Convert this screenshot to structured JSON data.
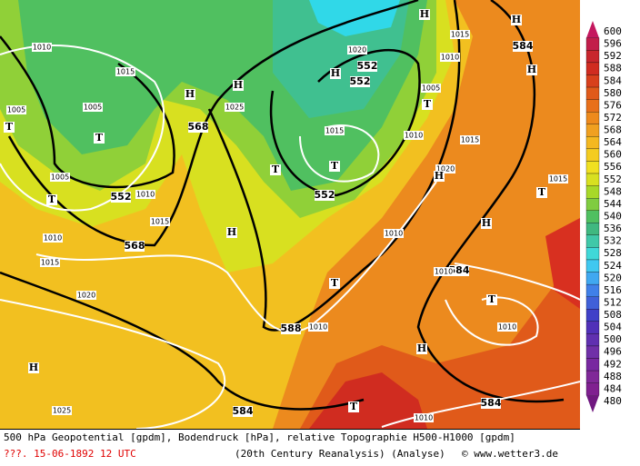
{
  "map": {
    "geopotential_labels": [
      552,
      552,
      568,
      552,
      552,
      568,
      588,
      584,
      584,
      584,
      584
    ],
    "isobar_labels": [
      1010,
      1015,
      1005,
      1005,
      1025,
      1020,
      1015,
      1010,
      1005,
      1015,
      1010,
      1015,
      1020,
      1005,
      1010,
      1015,
      1010,
      1015,
      1020,
      1010,
      1010,
      1015,
      1010,
      1010,
      1025,
      1010
    ],
    "pressure_centers": [
      "T",
      "T",
      "T",
      "H",
      "H",
      "H",
      "H",
      "H",
      "H",
      "T",
      "T",
      "T",
      "H",
      "H",
      "T",
      "H",
      "T",
      "T",
      "H",
      "H",
      "T"
    ],
    "colorbar": {
      "ticks": [
        600,
        596,
        592,
        588,
        584,
        580,
        576,
        572,
        568,
        564,
        560,
        556,
        552,
        548,
        544,
        540,
        536,
        532,
        528,
        524,
        520,
        516,
        512,
        508,
        504,
        500,
        496,
        492,
        488,
        484,
        480
      ],
      "colors": [
        "#c4185e",
        "#c21e4a",
        "#c8262c",
        "#d02c20",
        "#d8401c",
        "#e05a1a",
        "#e8701a",
        "#ee8a1c",
        "#f0a020",
        "#f4b820",
        "#f4cc20",
        "#f0e020",
        "#d8e020",
        "#a8d828",
        "#80cc40",
        "#50c060",
        "#40b880",
        "#40c8a8",
        "#40d8d8",
        "#40c8f0",
        "#40a8f0",
        "#4080e8",
        "#4060d8",
        "#4040c8",
        "#5030b8",
        "#6030b0",
        "#7030a8",
        "#7828a0",
        "#802898",
        "#802090",
        "#701880"
      ]
    }
  },
  "footer": {
    "description": "500 hPa Geopotential [gpdm], Bodendruck [hPa], relative Topographie H500-H1000 [gpdm]",
    "date": "???. 15-06-1892  12 UTC",
    "source": "(20th Century Reanalysis)  (Analyse)",
    "credit": "© www.wetter3.de"
  }
}
